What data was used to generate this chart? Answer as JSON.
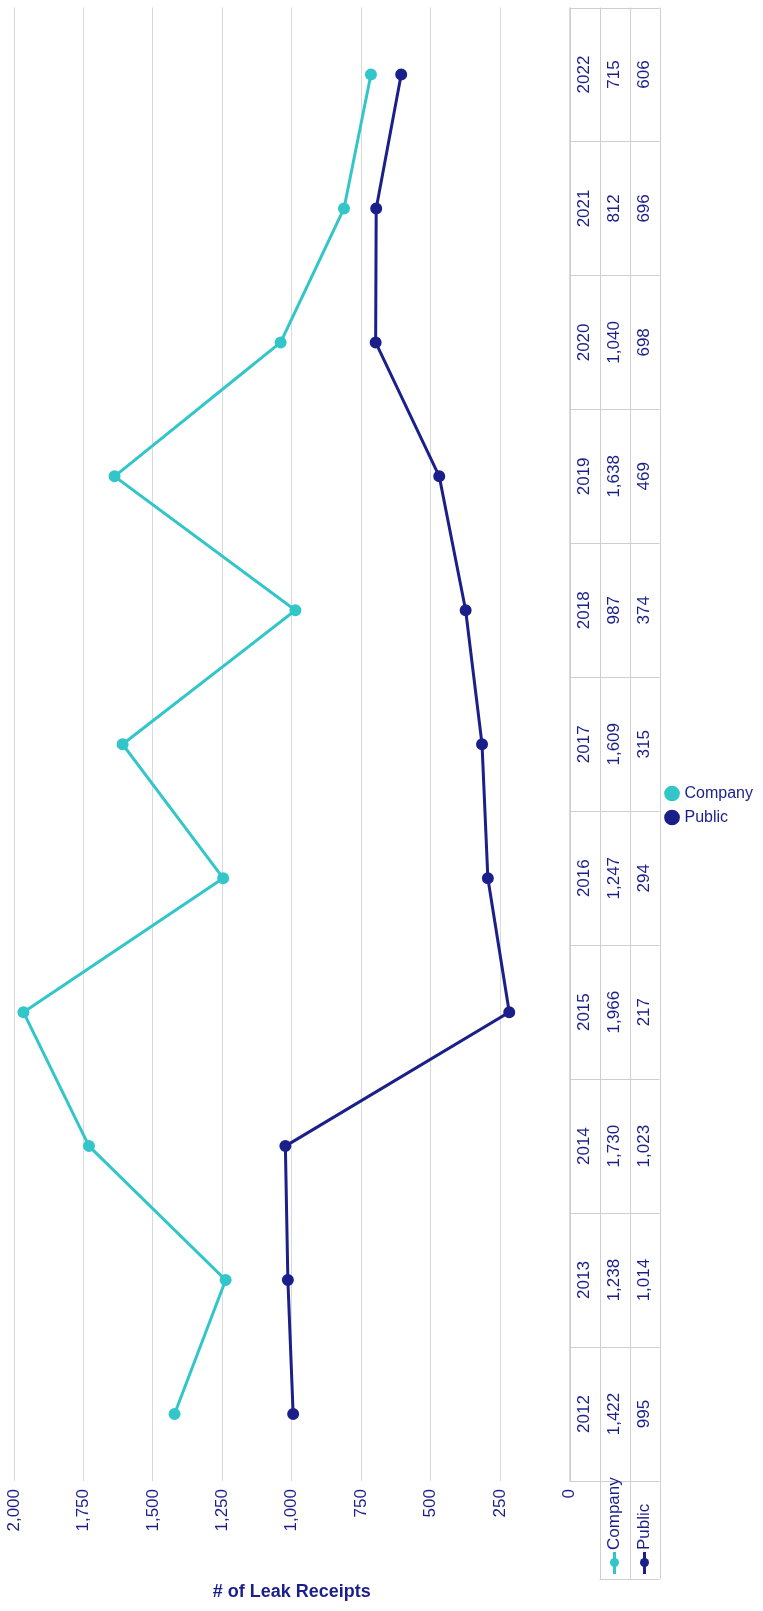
{
  "chart_data": {
    "type": "line",
    "orientation": "horizontal",
    "xlabel": "# of Leak Receipts",
    "categories": [
      "2022",
      "2021",
      "2020",
      "2019",
      "2018",
      "2017",
      "2016",
      "2015",
      "2014",
      "2013",
      "2012"
    ],
    "series": [
      {
        "name": "Company",
        "color": "#33c6c9",
        "values": [
          715,
          812,
          1040,
          1638,
          987,
          1609,
          1247,
          1966,
          1730,
          1238,
          1422
        ],
        "value_labels": [
          "715",
          "812",
          "1,040",
          "1,638",
          "987",
          "1,609",
          "1,247",
          "1,966",
          "1,730",
          "1,238",
          "1,422"
        ]
      },
      {
        "name": "Public",
        "color": "#1b1f8a",
        "values": [
          606,
          696,
          698,
          469,
          374,
          315,
          294,
          217,
          1023,
          1014,
          995
        ],
        "value_labels": [
          "606",
          "696",
          "698",
          "469",
          "374",
          "315",
          "294",
          "217",
          "1,023",
          "1,014",
          "995"
        ]
      }
    ],
    "xlim": [
      2000,
      0
    ],
    "xticks": [
      0,
      250,
      500,
      750,
      {
        "value": 1000,
        "label": "1,000"
      },
      {
        "value": 1250,
        "label": "1,250"
      },
      {
        "value": 1500,
        "label": "1,500"
      },
      {
        "value": 1750,
        "label": "1,750"
      },
      {
        "value": 2000,
        "label": "2,000"
      }
    ],
    "grid": "x",
    "legend": "right",
    "marker": "circle",
    "line_style": "solid"
  }
}
